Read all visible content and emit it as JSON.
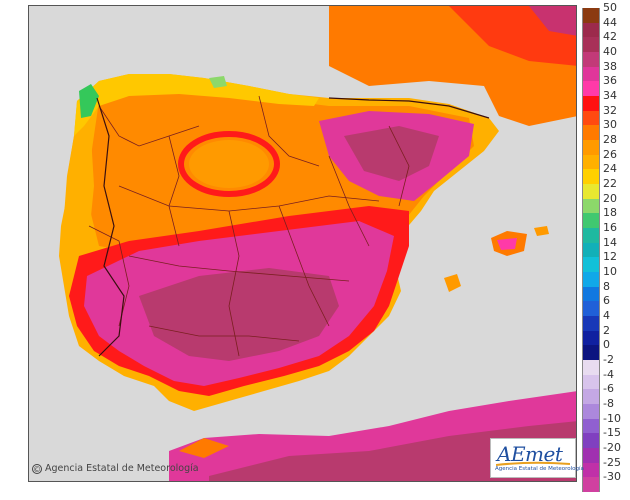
{
  "map": {
    "region": "Iberian Peninsula, Balearic Islands and North Africa",
    "variable": "temperature",
    "colors": {
      "sea": "#d9d9d9",
      "hot_core": "#b83a6e",
      "very_hot": "#e0389a",
      "red_band": "#ff1a1a",
      "orange": "#ff7a00",
      "yellow_orange": "#ffb300",
      "green_peak": "#34c85a",
      "borders": "#7a1f1f"
    }
  },
  "legend": {
    "entries": [
      {
        "label": "50",
        "color": "#8b3a10"
      },
      {
        "label": "44",
        "color": "#9c2a4c"
      },
      {
        "label": "42",
        "color": "#a83058"
      },
      {
        "label": "40",
        "color": "#c23a78"
      },
      {
        "label": "38",
        "color": "#e0369a"
      },
      {
        "label": "36",
        "color": "#ff3aa8"
      },
      {
        "label": "34",
        "color": "#ff1010"
      },
      {
        "label": "32",
        "color": "#ff4a10"
      },
      {
        "label": "30",
        "color": "#ff7a00"
      },
      {
        "label": "28",
        "color": "#ff9a00"
      },
      {
        "label": "26",
        "color": "#ffb000"
      },
      {
        "label": "24",
        "color": "#ffd000"
      },
      {
        "label": "22",
        "color": "#e8e830"
      },
      {
        "label": "20",
        "color": "#8cd86a"
      },
      {
        "label": "18",
        "color": "#40c870"
      },
      {
        "label": "16",
        "color": "#1fb9a0"
      },
      {
        "label": "14",
        "color": "#12b0b8"
      },
      {
        "label": "12",
        "color": "#12c0d8"
      },
      {
        "label": "10",
        "color": "#10a8e8"
      },
      {
        "label": "8",
        "color": "#1078e0"
      },
      {
        "label": "6",
        "color": "#2060d8"
      },
      {
        "label": "4",
        "color": "#1838b8"
      },
      {
        "label": "2",
        "color": "#1020a0"
      },
      {
        "label": "0",
        "color": "#0c1480"
      },
      {
        "label": "-2",
        "color": "#e8dcf0"
      },
      {
        "label": "-4",
        "color": "#d8c4ec"
      },
      {
        "label": "-6",
        "color": "#c4a8e4"
      },
      {
        "label": "-8",
        "color": "#ac88dc"
      },
      {
        "label": "-10",
        "color": "#9060d0"
      },
      {
        "label": "-15",
        "color": "#8040c0"
      },
      {
        "label": "-20",
        "color": "#a030b0"
      },
      {
        "label": "-25",
        "color": "#c030a8"
      },
      {
        "label": "-30",
        "color": "#d040a0"
      }
    ]
  },
  "footer": {
    "copyright_symbol": "©",
    "copyright_text": "Agencia Estatal de Meteorología"
  },
  "logo": {
    "text": "AEmet",
    "subtitle": "Agencia Estatal de Meteorología"
  }
}
